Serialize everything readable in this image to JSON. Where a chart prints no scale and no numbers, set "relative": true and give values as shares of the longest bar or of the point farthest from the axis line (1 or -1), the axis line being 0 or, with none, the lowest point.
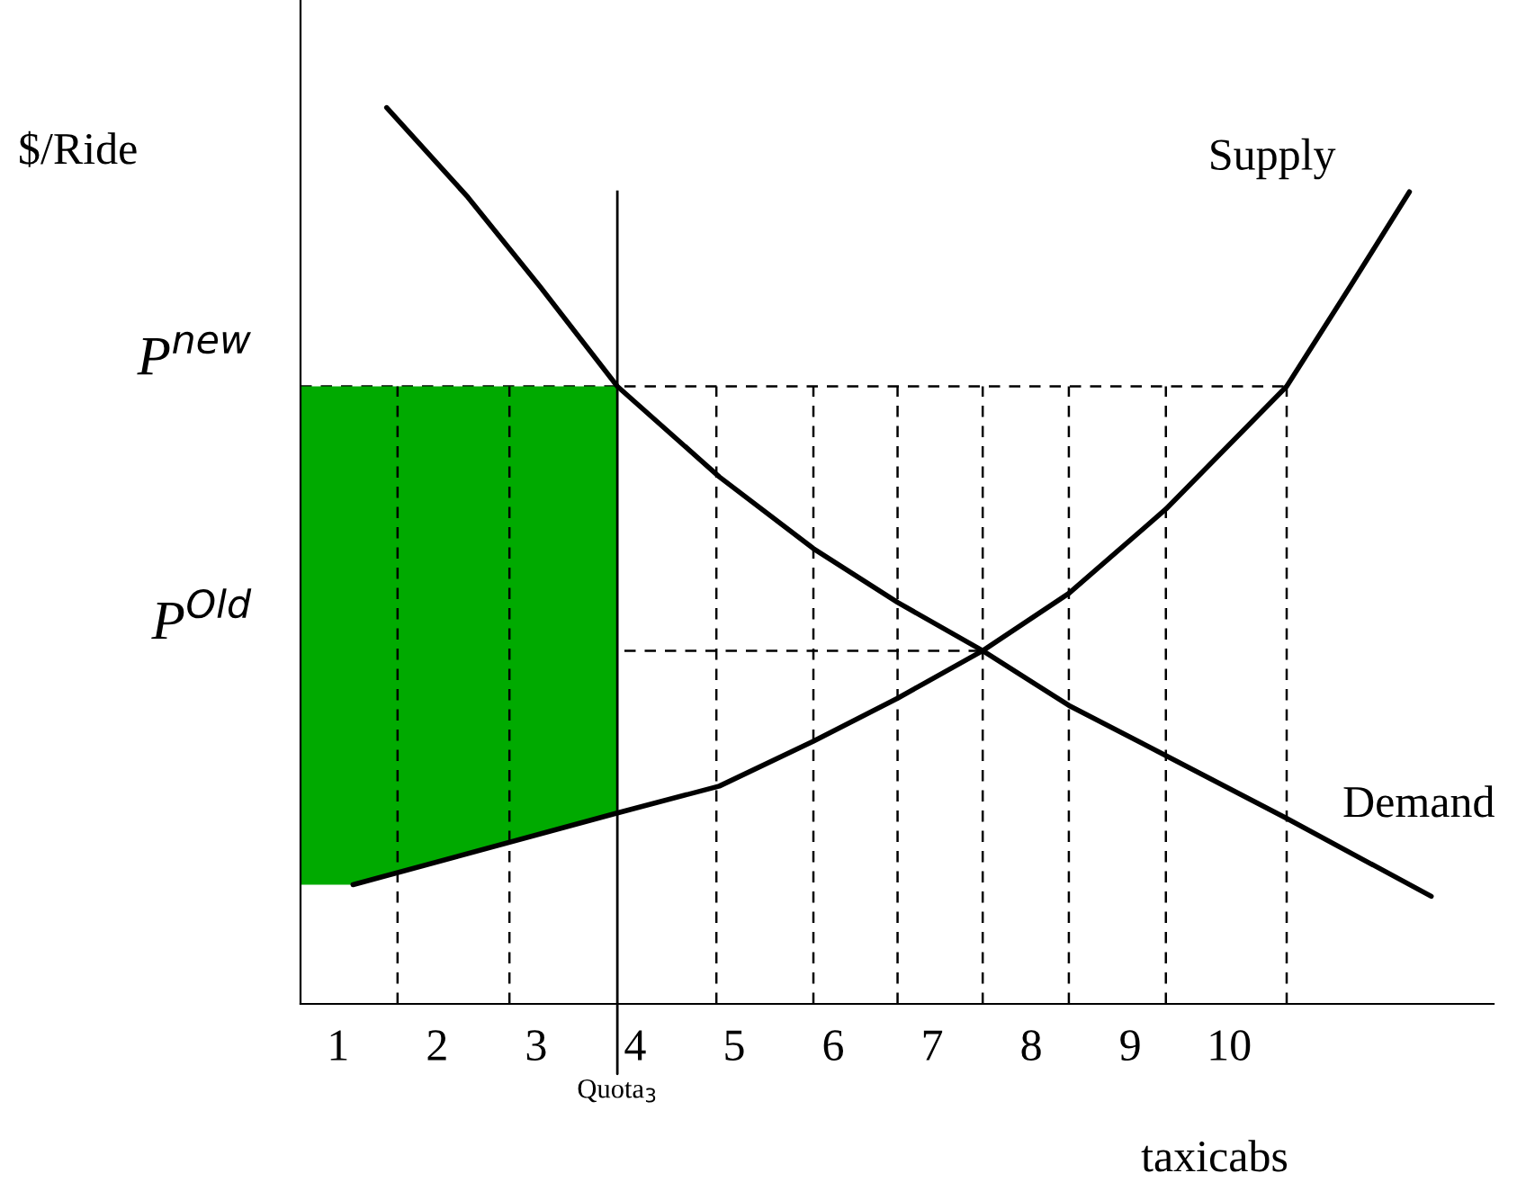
{
  "chart_data": {
    "type": "line",
    "relative": true,
    "ylabel": "$/Ride",
    "xlabel": "taxicabs",
    "xlim": [
      0.62,
      12.67
    ],
    "xticks": [
      1,
      2,
      3,
      4,
      5,
      6,
      7,
      8,
      9,
      10
    ],
    "ref_lines": [
      {
        "axis": "y",
        "value": 0.689,
        "label": "P$^{new}$",
        "line_style": "dashed",
        "color": "#000000"
      },
      {
        "axis": "y",
        "value": 0.394,
        "label": "P$^{Old}$",
        "line_style": "dashed",
        "color": "#000000"
      },
      {
        "axis": "x",
        "value": 3.82,
        "label": "Quota$_{3}$",
        "line_style": "solid",
        "color": "#000000"
      }
    ],
    "series": [
      {
        "type": "area",
        "color": "#00aa00",
        "x": [
          0.62,
          1.15,
          3.82
        ],
        "values": [
          0.689,
          0.689,
          0.689
        ]
      },
      {
        "name": "Demand",
        "color": "#000000",
        "x": [
          1.49,
          2.31,
          3.04,
          3.82,
          4.85,
          5.8,
          6.65,
          7.51,
          8.38,
          9.36,
          10.58,
          12.04
        ],
        "values": [
          1.0,
          0.9,
          0.8,
          0.689,
          0.588,
          0.508,
          0.448,
          0.394,
          0.333,
          0.277,
          0.207,
          0.12
        ]
      },
      {
        "name": "Supply",
        "color": "#000000",
        "x": [
          1.15,
          3.82,
          4.85,
          5.8,
          6.65,
          7.51,
          8.38,
          9.36,
          10.58,
          11.22,
          11.82
        ],
        "values": [
          0.133,
          0.213,
          0.243,
          0.293,
          0.341,
          0.394,
          0.458,
          0.552,
          0.689,
          0.8,
          0.906
        ]
      },
      {
        "line_style": "dashed",
        "color": "#000000",
        "x": [
          1.6,
          1.6
        ],
        "values": [
          0,
          0.689
        ]
      },
      {
        "line_style": "dashed",
        "color": "#000000",
        "x": [
          2.73,
          2.73
        ],
        "values": [
          0,
          0.689
        ]
      },
      {
        "line_style": "dashed",
        "color": "#000000",
        "x": [
          4.82,
          4.82
        ],
        "values": [
          0,
          0.689
        ]
      },
      {
        "line_style": "dashed",
        "color": "#000000",
        "x": [
          5.8,
          5.8
        ],
        "values": [
          0,
          0.689
        ]
      },
      {
        "line_style": "dashed",
        "color": "#000000",
        "x": [
          6.65,
          6.65
        ],
        "values": [
          0,
          0.689
        ]
      },
      {
        "line_style": "dashed",
        "color": "#000000",
        "x": [
          7.51,
          7.51
        ],
        "values": [
          0,
          0.689
        ]
      },
      {
        "line_style": "dashed",
        "color": "#000000",
        "x": [
          8.38,
          8.38
        ],
        "values": [
          0,
          0.689
        ]
      },
      {
        "line_style": "dashed",
        "color": "#000000",
        "x": [
          9.36,
          9.36
        ],
        "values": [
          0,
          0.689
        ]
      },
      {
        "line_style": "dashed",
        "color": "#000000",
        "x": [
          10.58,
          10.58
        ],
        "values": [
          0,
          0.689
        ]
      }
    ]
  }
}
